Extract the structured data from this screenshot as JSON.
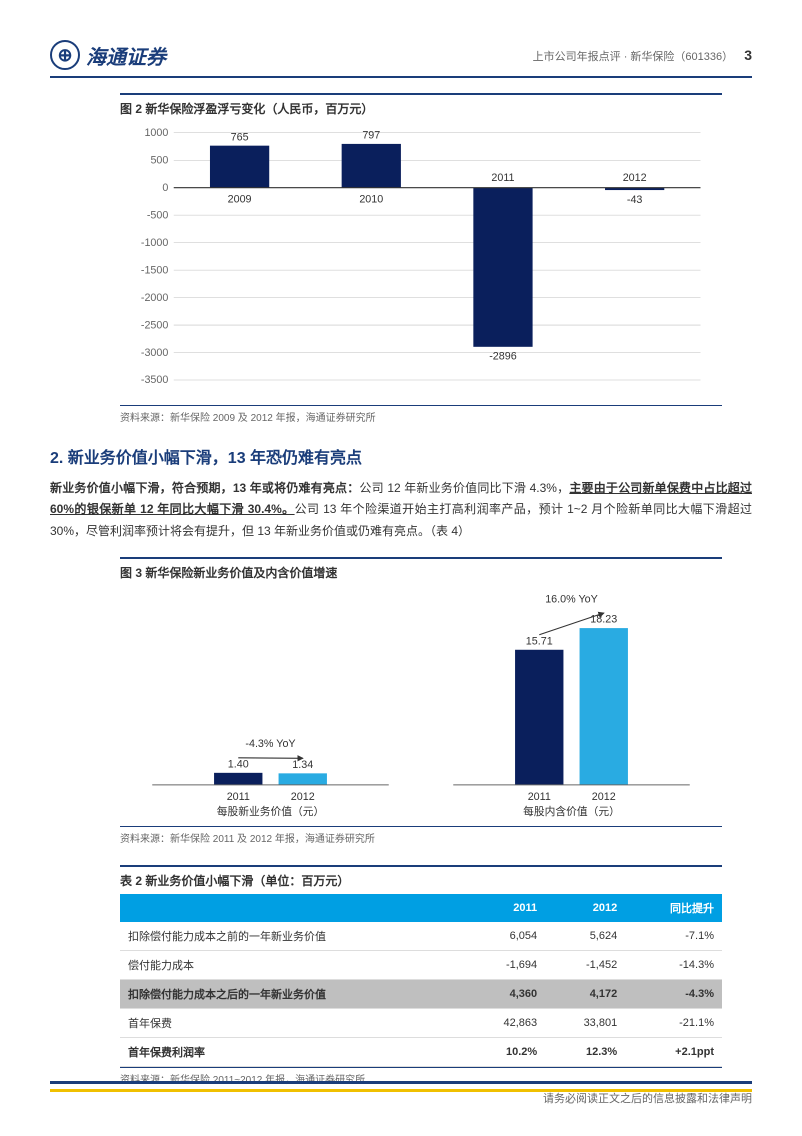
{
  "header": {
    "company": "海通证券",
    "right_text": "上市公司年报点评 · 新华保险（601336）",
    "page_num": "3"
  },
  "chart2": {
    "title": "图 2 新华保险浮盈浮亏变化（人民币，百万元）",
    "type": "bar",
    "categories": [
      "2009",
      "2010",
      "2011",
      "2012"
    ],
    "values": [
      765,
      797,
      -2896,
      -43
    ],
    "bar_color": "#0a1f5c",
    "ylim": [
      -3500,
      1000
    ],
    "yticks": [
      -3500,
      -3000,
      -2500,
      -2000,
      -1500,
      -1000,
      -500,
      0,
      500,
      1000
    ],
    "bg": "#ffffff",
    "grid_color": "#bfbfbf",
    "axis_color": "#666",
    "label_fontsize": 10,
    "source": "资料来源：新华保险 2009 及 2012 年报，海通证券研究所"
  },
  "section2": {
    "title": "2. 新业务价值小幅下滑，13 年恐仍难有亮点",
    "para_lead": "新业务价值小幅下滑，符合预期，13 年或将仍难有亮点：",
    "para_body1": "公司 12 年新业务价值同比下滑 4.3%，",
    "para_underline": "主要由于公司新单保费中占比超过 60%的银保新单 12 年同比大幅下滑 30.4%。",
    "para_body2": "公司 13 年个险渠道开始主打高利润率产品，预计 1~2 月个险新单同比大幅下滑超过 30%，尽管利润率预计将会有提升，但 13 年新业务价值或仍难有亮点。（表 4）"
  },
  "chart3": {
    "title": "图 3 新华保险新业务价值及内含价值增速",
    "type": "grouped-bar",
    "groups": [
      {
        "label": "每股新业务价值（元）",
        "years": [
          "2011",
          "2012"
        ],
        "values": [
          1.4,
          1.34
        ],
        "colors": [
          "#0a1f5c",
          "#29abe2"
        ],
        "annotation": "-4.3% YoY"
      },
      {
        "label": "每股内含价值（元）",
        "years": [
          "2011",
          "2012"
        ],
        "values": [
          15.71,
          18.23
        ],
        "colors": [
          "#0a1f5c",
          "#29abe2"
        ],
        "annotation": "16.0% YoY"
      }
    ],
    "ylim": [
      0,
      20
    ],
    "bg": "#ffffff",
    "axis_color": "#666",
    "label_fontsize": 10,
    "source": "资料来源：新华保险 2011 及 2012 年报，海通证券研究所"
  },
  "table2": {
    "title": "表 2 新业务价值小幅下滑（单位：百万元）",
    "headers": [
      "",
      "2011",
      "2012",
      "同比提升"
    ],
    "rows": [
      {
        "cells": [
          "扣除偿付能力成本之前的一年新业务价值",
          "6,054",
          "5,624",
          "-7.1%"
        ],
        "style": ""
      },
      {
        "cells": [
          "偿付能力成本",
          "-1,694",
          "-1,452",
          "-14.3%"
        ],
        "style": ""
      },
      {
        "cells": [
          "扣除偿付能力成本之后的一年新业务价值",
          "4,360",
          "4,172",
          "-4.3%"
        ],
        "style": "hl"
      },
      {
        "cells": [
          "首年保费",
          "42,863",
          "33,801",
          "-21.1%"
        ],
        "style": ""
      },
      {
        "cells": [
          "首年保费利润率",
          "10.2%",
          "12.3%",
          "+2.1ppt"
        ],
        "style": "bold"
      }
    ],
    "header_bg": "#009fe3",
    "source": "资料来源：新华保险 2011~2012 年报，海通证券研究所"
  },
  "footer": {
    "text": "请务必阅读正文之后的信息披露和法律声明"
  }
}
